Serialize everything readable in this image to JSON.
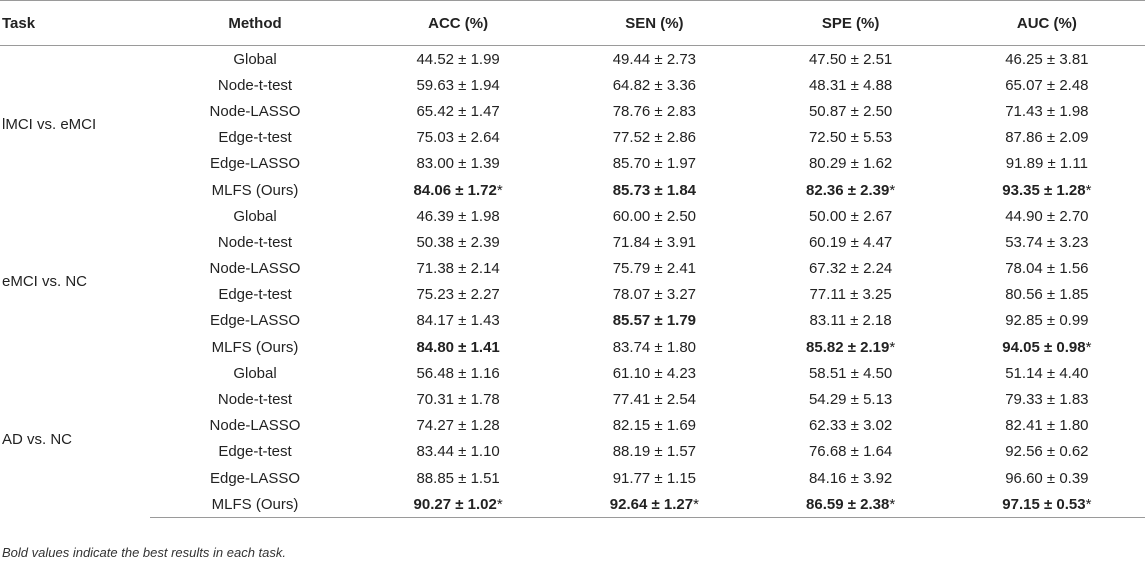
{
  "table": {
    "headers": [
      "Task",
      "Method",
      "ACC (%)",
      "SEN (%)",
      "SPE (%)",
      "AUC (%)"
    ],
    "groups": [
      {
        "task": "lMCI vs. eMCI",
        "rows": [
          {
            "method": "Global",
            "cells": [
              {
                "value": "44.52 ± 1.99",
                "bold": false,
                "star": ""
              },
              {
                "value": "49.44 ± 2.73",
                "bold": false,
                "star": ""
              },
              {
                "value": "47.50 ± 2.51",
                "bold": false,
                "star": ""
              },
              {
                "value": "46.25 ± 3.81",
                "bold": false,
                "star": ""
              }
            ]
          },
          {
            "method": "Node-t-test",
            "cells": [
              {
                "value": "59.63 ± 1.94",
                "bold": false,
                "star": ""
              },
              {
                "value": "64.82 ± 3.36",
                "bold": false,
                "star": ""
              },
              {
                "value": "48.31 ± 4.88",
                "bold": false,
                "star": ""
              },
              {
                "value": "65.07 ± 2.48",
                "bold": false,
                "star": ""
              }
            ]
          },
          {
            "method": "Node-LASSO",
            "cells": [
              {
                "value": "65.42 ± 1.47",
                "bold": false,
                "star": ""
              },
              {
                "value": "78.76 ± 2.83",
                "bold": false,
                "star": ""
              },
              {
                "value": "50.87 ± 2.50",
                "bold": false,
                "star": ""
              },
              {
                "value": "71.43 ± 1.98",
                "bold": false,
                "star": ""
              }
            ]
          },
          {
            "method": "Edge-t-test",
            "cells": [
              {
                "value": "75.03 ± 2.64",
                "bold": false,
                "star": ""
              },
              {
                "value": "77.52 ± 2.86",
                "bold": false,
                "star": ""
              },
              {
                "value": "72.50 ± 5.53",
                "bold": false,
                "star": ""
              },
              {
                "value": "87.86 ± 2.09",
                "bold": false,
                "star": ""
              }
            ]
          },
          {
            "method": "Edge-LASSO",
            "cells": [
              {
                "value": "83.00 ± 1.39",
                "bold": false,
                "star": ""
              },
              {
                "value": "85.70 ± 1.97",
                "bold": false,
                "star": ""
              },
              {
                "value": "80.29 ± 1.62",
                "bold": false,
                "star": ""
              },
              {
                "value": "91.89 ± 1.11",
                "bold": false,
                "star": ""
              }
            ]
          },
          {
            "method": "MLFS (Ours)",
            "cells": [
              {
                "value": "84.06 ± 1.72",
                "bold": true,
                "star": "*"
              },
              {
                "value": "85.73 ± 1.84",
                "bold": true,
                "star": ""
              },
              {
                "value": "82.36 ± 2.39",
                "bold": true,
                "star": "*"
              },
              {
                "value": "93.35 ± 1.28",
                "bold": true,
                "star": "*"
              }
            ]
          }
        ]
      },
      {
        "task": "eMCI vs. NC",
        "rows": [
          {
            "method": "Global",
            "cells": [
              {
                "value": "46.39 ± 1.98",
                "bold": false,
                "star": ""
              },
              {
                "value": "60.00 ± 2.50",
                "bold": false,
                "star": ""
              },
              {
                "value": "50.00 ± 2.67",
                "bold": false,
                "star": ""
              },
              {
                "value": "44.90 ± 2.70",
                "bold": false,
                "star": ""
              }
            ]
          },
          {
            "method": "Node-t-test",
            "cells": [
              {
                "value": "50.38 ± 2.39",
                "bold": false,
                "star": ""
              },
              {
                "value": "71.84 ± 3.91",
                "bold": false,
                "star": ""
              },
              {
                "value": "60.19 ± 4.47",
                "bold": false,
                "star": ""
              },
              {
                "value": "53.74 ± 3.23",
                "bold": false,
                "star": ""
              }
            ]
          },
          {
            "method": "Node-LASSO",
            "cells": [
              {
                "value": "71.38 ± 2.14",
                "bold": false,
                "star": ""
              },
              {
                "value": "75.79 ± 2.41",
                "bold": false,
                "star": ""
              },
              {
                "value": "67.32 ± 2.24",
                "bold": false,
                "star": ""
              },
              {
                "value": "78.04 ± 1.56",
                "bold": false,
                "star": ""
              }
            ]
          },
          {
            "method": "Edge-t-test",
            "cells": [
              {
                "value": "75.23 ± 2.27",
                "bold": false,
                "star": ""
              },
              {
                "value": "78.07 ± 3.27",
                "bold": false,
                "star": ""
              },
              {
                "value": "77.11 ± 3.25",
                "bold": false,
                "star": ""
              },
              {
                "value": "80.56 ± 1.85",
                "bold": false,
                "star": ""
              }
            ]
          },
          {
            "method": "Edge-LASSO",
            "cells": [
              {
                "value": "84.17 ± 1.43",
                "bold": false,
                "star": ""
              },
              {
                "value": "85.57 ± 1.79",
                "bold": true,
                "star": ""
              },
              {
                "value": "83.11 ± 2.18",
                "bold": false,
                "star": ""
              },
              {
                "value": "92.85 ± 0.99",
                "bold": false,
                "star": ""
              }
            ]
          },
          {
            "method": "MLFS (Ours)",
            "cells": [
              {
                "value": "84.80 ± 1.41",
                "bold": true,
                "star": ""
              },
              {
                "value": "83.74 ± 1.80",
                "bold": false,
                "star": ""
              },
              {
                "value": "85.82 ± 2.19",
                "bold": true,
                "star": "*"
              },
              {
                "value": "94.05 ± 0.98",
                "bold": true,
                "star": "*"
              }
            ]
          }
        ]
      },
      {
        "task": "AD vs. NC",
        "rows": [
          {
            "method": "Global",
            "cells": [
              {
                "value": "56.48 ± 1.16",
                "bold": false,
                "star": ""
              },
              {
                "value": "61.10 ± 4.23",
                "bold": false,
                "star": ""
              },
              {
                "value": "58.51 ± 4.50",
                "bold": false,
                "star": ""
              },
              {
                "value": "51.14 ± 4.40",
                "bold": false,
                "star": ""
              }
            ]
          },
          {
            "method": "Node-t-test",
            "cells": [
              {
                "value": "70.31 ± 1.78",
                "bold": false,
                "star": ""
              },
              {
                "value": "77.41 ± 2.54",
                "bold": false,
                "star": ""
              },
              {
                "value": "54.29 ± 5.13",
                "bold": false,
                "star": ""
              },
              {
                "value": "79.33 ± 1.83",
                "bold": false,
                "star": ""
              }
            ]
          },
          {
            "method": "Node-LASSO",
            "cells": [
              {
                "value": "74.27 ± 1.28",
                "bold": false,
                "star": ""
              },
              {
                "value": "82.15 ± 1.69",
                "bold": false,
                "star": ""
              },
              {
                "value": "62.33 ± 3.02",
                "bold": false,
                "star": ""
              },
              {
                "value": "82.41 ± 1.80",
                "bold": false,
                "star": ""
              }
            ]
          },
          {
            "method": "Edge-t-test",
            "cells": [
              {
                "value": "83.44 ± 1.10",
                "bold": false,
                "star": ""
              },
              {
                "value": "88.19 ± 1.57",
                "bold": false,
                "star": ""
              },
              {
                "value": "76.68 ± 1.64",
                "bold": false,
                "star": ""
              },
              {
                "value": "92.56 ± 0.62",
                "bold": false,
                "star": ""
              }
            ]
          },
          {
            "method": "Edge-LASSO",
            "cells": [
              {
                "value": "88.85 ± 1.51",
                "bold": false,
                "star": ""
              },
              {
                "value": "91.77 ± 1.15",
                "bold": false,
                "star": ""
              },
              {
                "value": "84.16 ± 3.92",
                "bold": false,
                "star": ""
              },
              {
                "value": "96.60 ± 0.39",
                "bold": false,
                "star": ""
              }
            ]
          },
          {
            "method": "MLFS (Ours)",
            "cells": [
              {
                "value": "90.27 ± 1.02",
                "bold": true,
                "star": "*"
              },
              {
                "value": "92.64 ± 1.27",
                "bold": true,
                "star": "*"
              },
              {
                "value": "86.59 ± 2.38",
                "bold": true,
                "star": "*"
              },
              {
                "value": "97.15 ± 0.53",
                "bold": true,
                "star": "*"
              }
            ]
          }
        ]
      }
    ]
  },
  "footnote": "Bold values indicate the best results in each task."
}
